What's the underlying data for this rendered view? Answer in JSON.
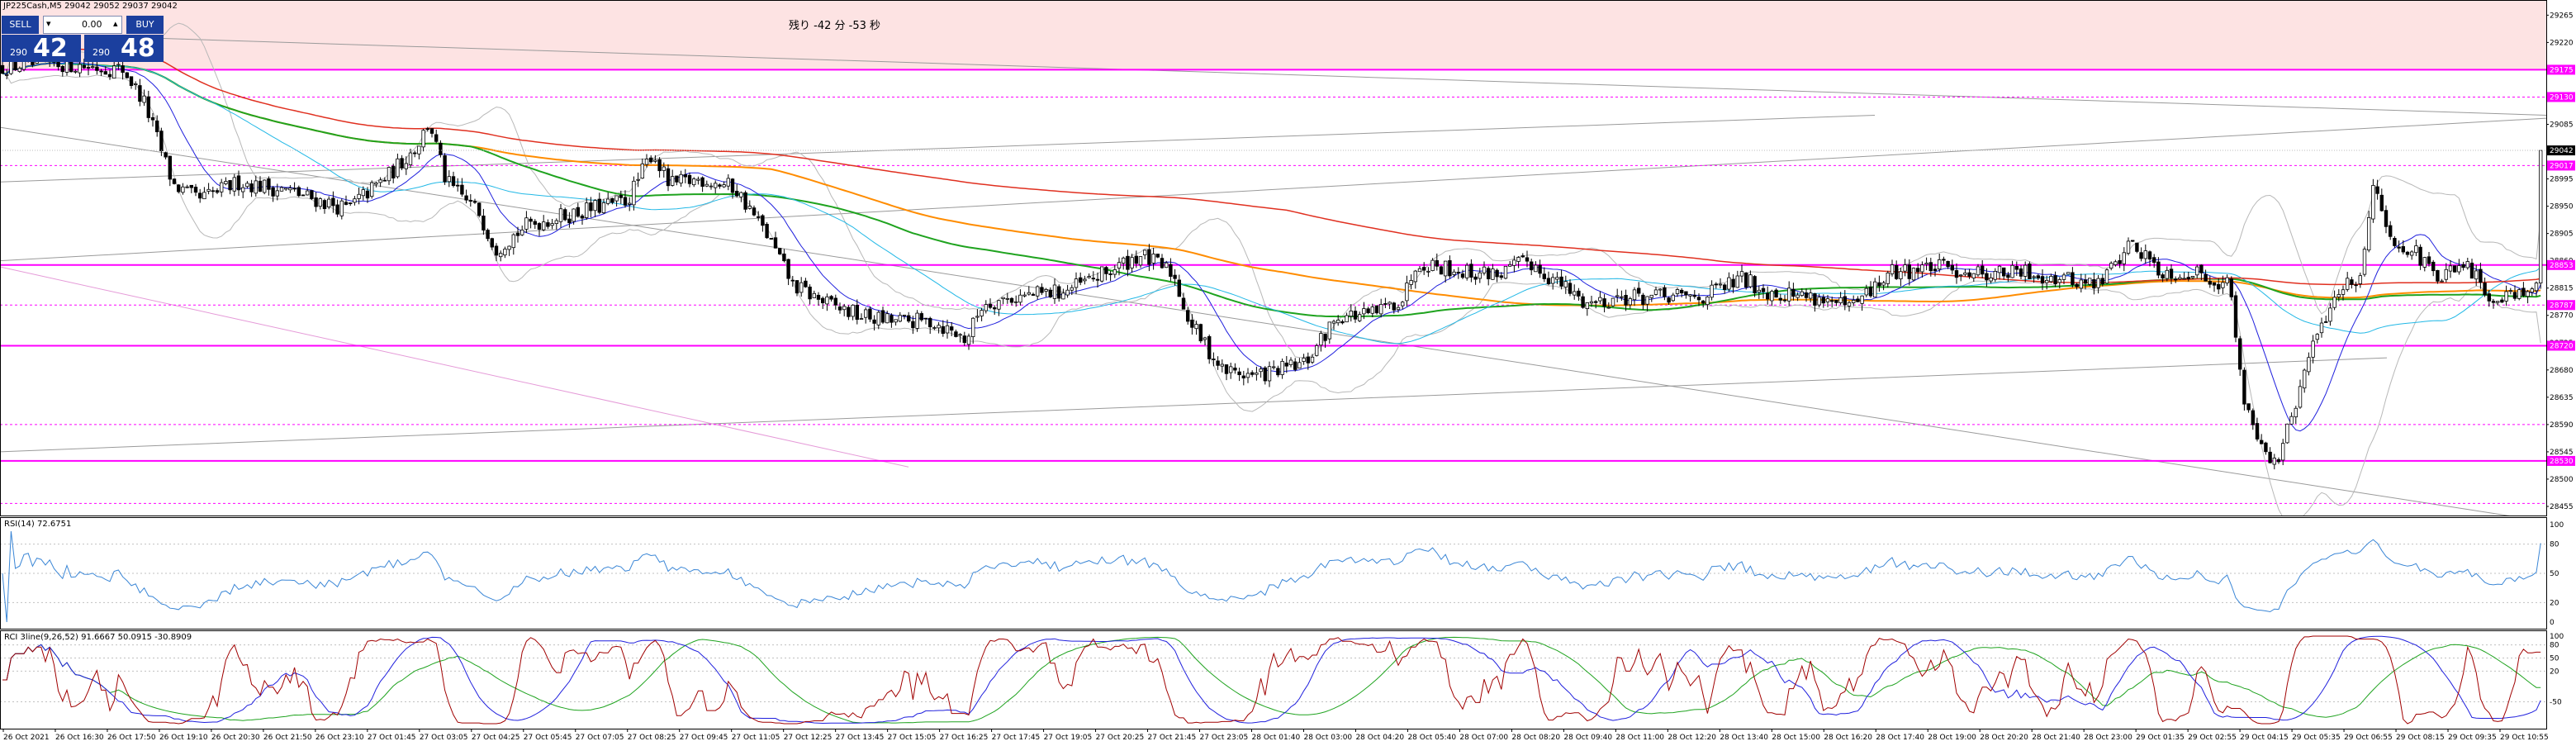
{
  "symbol_line": "JP225Cash,M5 29042 29052 29037 29042",
  "countdown": "残り -42 分 -53 秒",
  "trade_panel": {
    "sell_label": "SELL",
    "buy_label": "BUY",
    "lot_value": "0.00",
    "sell_price_prefix": "290",
    "sell_price_big": "42",
    "buy_price_prefix": "290",
    "buy_price_big": "48"
  },
  "indicators": {
    "rsi_label": "RSI(14) 72.6751",
    "stoch_label": "RCI 3line(9,26,52) 91.6667 50.0915 -30.8909"
  },
  "price_axis": {
    "ticks": [
      "29265",
      "29220",
      "29175",
      "29130",
      "29085",
      "29040",
      "28995",
      "28950",
      "28905",
      "28860",
      "28815",
      "28770",
      "28725",
      "28680",
      "28635",
      "28590",
      "28545",
      "28500",
      "28455"
    ],
    "current_price": "29042",
    "level_tags": [
      {
        "price": 29175,
        "label": "29175"
      },
      {
        "price": 29130,
        "label": "29130"
      },
      {
        "price": 29017,
        "label": "29017"
      },
      {
        "price": 28853,
        "label": "28853"
      },
      {
        "price": 28787,
        "label": "28787"
      },
      {
        "price": 28720,
        "label": "28720"
      },
      {
        "price": 28530,
        "label": "28530"
      }
    ],
    "solid_lines": [
      29175,
      28853,
      28720,
      28530
    ],
    "dashed_lines": [
      29130,
      29017,
      28787,
      28590,
      28460
    ]
  },
  "rsi_axis": {
    "ticks": [
      "100",
      "80",
      "50",
      "20",
      "0"
    ]
  },
  "stoch_axis": {
    "ticks": [
      "100",
      "80",
      "50",
      "20",
      "-50"
    ]
  },
  "time_axis": {
    "labels": [
      "26 Oct 2021",
      "26 Oct 16:30",
      "26 Oct 17:50",
      "26 Oct 19:10",
      "26 Oct 20:30",
      "26 Oct 21:50",
      "26 Oct 23:10",
      "27 Oct 01:45",
      "27 Oct 03:05",
      "27 Oct 04:25",
      "27 Oct 05:45",
      "27 Oct 07:05",
      "27 Oct 08:25",
      "27 Oct 09:45",
      "27 Oct 11:05",
      "27 Oct 12:25",
      "27 Oct 13:45",
      "27 Oct 15:05",
      "27 Oct 16:25",
      "27 Oct 17:45",
      "27 Oct 19:05",
      "27 Oct 20:25",
      "27 Oct 21:45",
      "27 Oct 23:05",
      "28 Oct 01:40",
      "28 Oct 03:00",
      "28 Oct 04:20",
      "28 Oct 05:40",
      "28 Oct 07:00",
      "28 Oct 08:20",
      "28 Oct 09:40",
      "28 Oct 11:00",
      "28 Oct 12:20",
      "28 Oct 13:40",
      "28 Oct 15:00",
      "28 Oct 16:20",
      "28 Oct 17:40",
      "28 Oct 19:00",
      "28 Oct 20:20",
      "28 Oct 21:40",
      "28 Oct 23:00",
      "29 Oct 01:35",
      "29 Oct 02:55",
      "29 Oct 04:15",
      "29 Oct 05:35",
      "29 Oct 06:55",
      "29 Oct 08:15",
      "29 Oct 09:35",
      "29 Oct 10:55"
    ]
  },
  "colors": {
    "zone_fill": "#fde3e3",
    "level_magenta": "#ff00ff",
    "ma_green": "#1fa31f",
    "ma_orange": "#ff8c00",
    "ma_blue": "#1f1fdd",
    "ma_cyan": "#22b8e6",
    "ma_red": "#e03020",
    "bollinger_gray": "#b8b8b8",
    "trend_gray": "#9a9a9a",
    "rsi_line": "#3a86d6",
    "rci_red": "#a00000",
    "rci_blue": "#1f1fdd",
    "rci_green": "#1fa31f",
    "price_tag": "#000000",
    "trade_blue": "#1b3f9e"
  }
}
